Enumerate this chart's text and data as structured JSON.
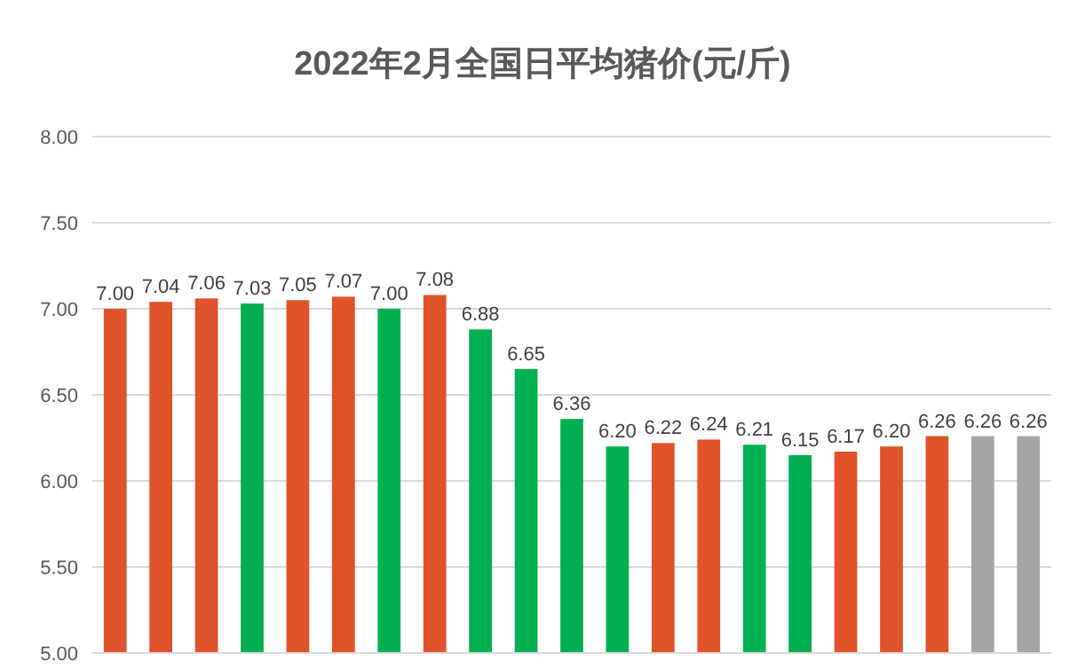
{
  "chart_data": {
    "type": "bar",
    "title": "2022年2月全国日平均猪价(元/斤)",
    "categories": [
      null,
      null,
      null,
      null,
      null,
      null,
      null,
      null,
      null,
      null,
      null,
      null,
      null,
      null,
      null,
      null,
      null,
      null,
      null,
      null,
      null
    ],
    "values": [
      7.0,
      7.04,
      7.06,
      7.03,
      7.05,
      7.07,
      7.0,
      7.08,
      6.88,
      6.65,
      6.36,
      6.2,
      6.22,
      6.24,
      6.21,
      6.15,
      6.17,
      6.2,
      6.26,
      6.26,
      6.26
    ],
    "value_labels": [
      "7.00",
      "7.04",
      "7.06",
      "7.03",
      "7.05",
      "7.07",
      "7.00",
      "7.08",
      "6.88",
      "6.65",
      "6.36",
      "6.20",
      "6.22",
      "6.24",
      "6.21",
      "6.15",
      "6.17",
      "6.20",
      "6.26",
      "6.26",
      "6.26"
    ],
    "colors": [
      "#e0522a",
      "#e0522a",
      "#e0522a",
      "#00b050",
      "#e0522a",
      "#e0522a",
      "#00b050",
      "#e0522a",
      "#00b050",
      "#00b050",
      "#00b050",
      "#00b050",
      "#e0522a",
      "#e0522a",
      "#00b050",
      "#00b050",
      "#e0522a",
      "#e0522a",
      "#e0522a",
      "#a5a5a5",
      "#a5a5a5"
    ],
    "ylim": [
      5,
      8
    ],
    "yticks": [
      {
        "value": 5,
        "label": "5.00"
      },
      {
        "value": 5.5,
        "label": "5.50"
      },
      {
        "value": 6,
        "label": "6.00"
      },
      {
        "value": 6.5,
        "label": "6.50"
      },
      {
        "value": 7,
        "label": "7.00"
      },
      {
        "value": 7.5,
        "label": "7.50"
      },
      {
        "value": 8,
        "label": "8.00"
      }
    ],
    "grid": "y"
  }
}
